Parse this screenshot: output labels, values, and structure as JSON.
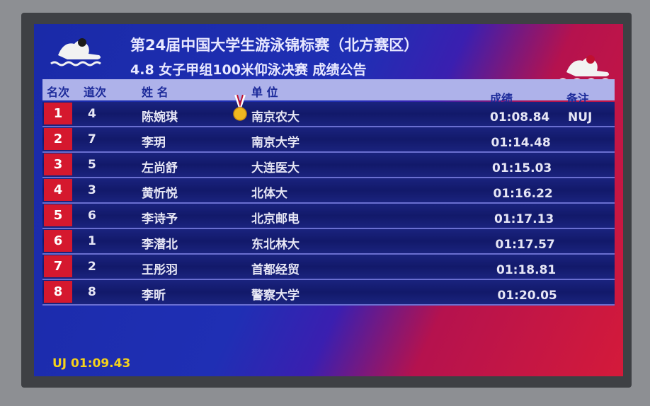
{
  "header": {
    "title": "第24届中国大学生游泳锦标赛（北方赛区）",
    "subtitle": "4.8 女子甲组100米仰泳决赛 成绩公告"
  },
  "columns": {
    "rank": "名次",
    "lane": "道次",
    "name": "姓 名",
    "unit": "单 位",
    "result": "成绩",
    "note": "备注"
  },
  "rows": [
    {
      "rank": "1",
      "lane": "4",
      "name": "陈婉琪",
      "unit": "南京农大",
      "result": "01:08.84",
      "note": "NUJ",
      "medal": "gold-medal-icon"
    },
    {
      "rank": "2",
      "lane": "7",
      "name": "李玥",
      "unit": "南京大学",
      "result": "01:14.48",
      "note": ""
    },
    {
      "rank": "3",
      "lane": "5",
      "name": "左尚舒",
      "unit": "大连医大",
      "result": "01:15.03",
      "note": ""
    },
    {
      "rank": "4",
      "lane": "3",
      "name": "黄忻悦",
      "unit": "北体大",
      "result": "01:16.22",
      "note": ""
    },
    {
      "rank": "5",
      "lane": "6",
      "name": "李诗予",
      "unit": "北京邮电",
      "result": "01:17.13",
      "note": ""
    },
    {
      "rank": "6",
      "lane": "1",
      "name": "李潜北",
      "unit": "东北林大",
      "result": "01:17.57",
      "note": ""
    },
    {
      "rank": "7",
      "lane": "2",
      "name": "王彤羽",
      "unit": "首都经贸",
      "result": "01:18.81",
      "note": ""
    },
    {
      "rank": "8",
      "lane": "8",
      "name": "李昕",
      "unit": "警察大学",
      "result": "01:20.05",
      "note": ""
    }
  ],
  "footer": {
    "record": "UJ 01:09.43"
  },
  "colors": {
    "rank_bg": "#d5182e",
    "record_text": "#f5d21a",
    "header_bg": "#aeb2ea"
  }
}
